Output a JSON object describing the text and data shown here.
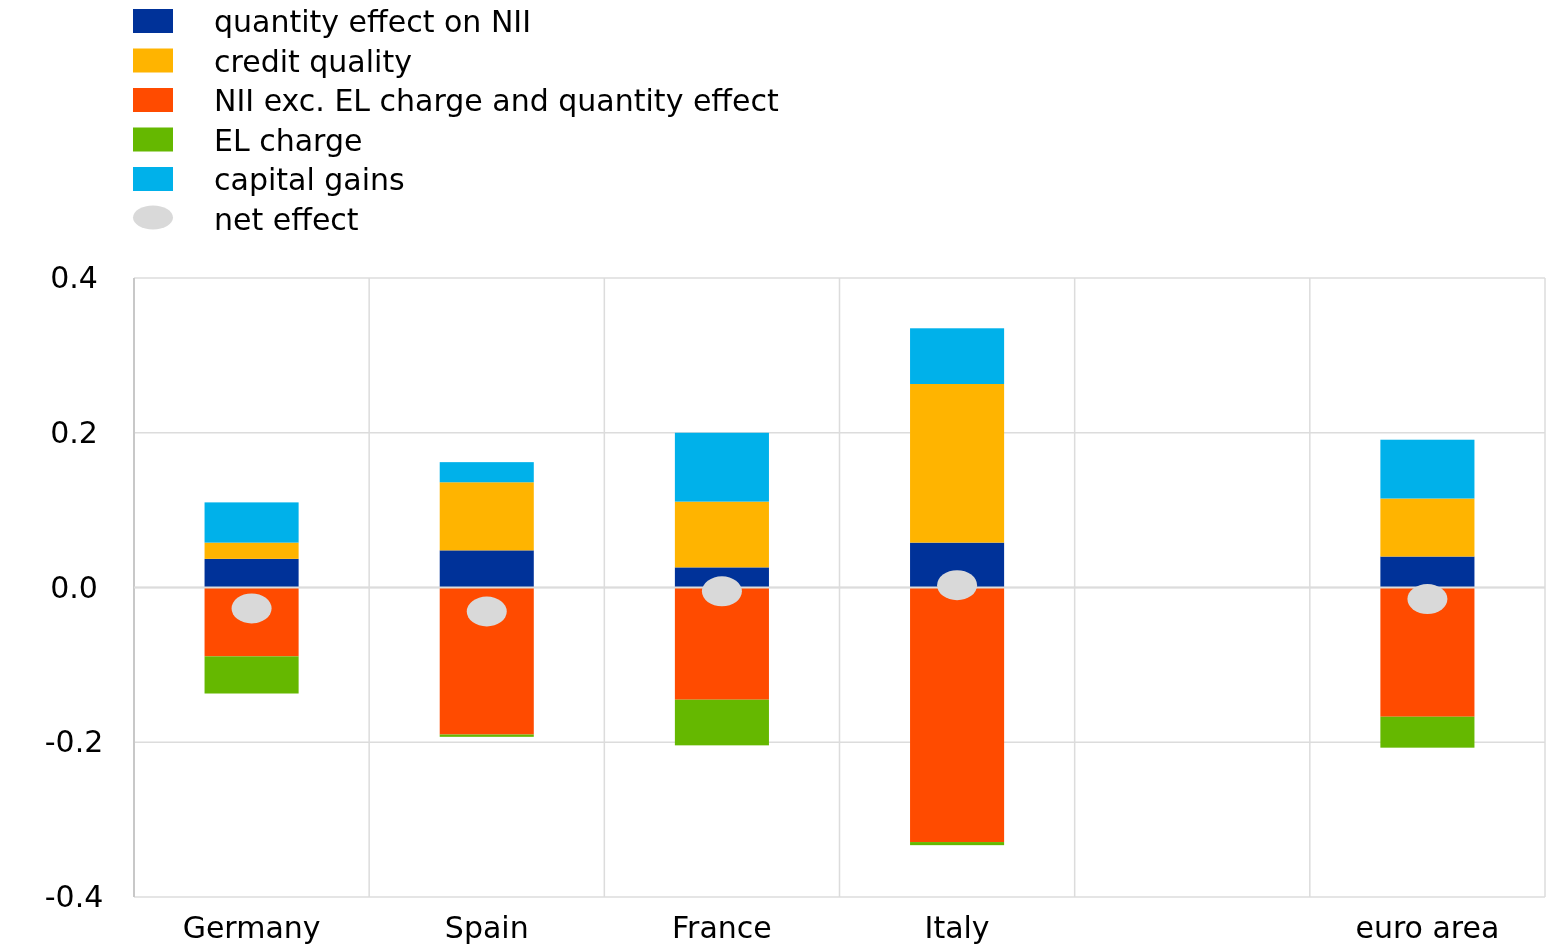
{
  "chart_data": {
    "type": "bar",
    "stacked": true,
    "categories": [
      "Germany",
      "Spain",
      "France",
      "Italy",
      null,
      "euro area"
    ],
    "series": [
      {
        "name": "quantity effect on NII",
        "color": "#003299",
        "values": [
          0.037,
          0.048,
          0.026,
          0.058,
          null,
          0.04
        ]
      },
      {
        "name": "credit quality",
        "color": "#ffb400",
        "values": [
          0.021,
          0.088,
          0.085,
          0.205,
          null,
          0.075
        ]
      },
      {
        "name": "NII exc. EL charge and quantity effect",
        "color": "#ff4b00",
        "values": [
          -0.089,
          -0.19,
          -0.145,
          -0.329,
          null,
          -0.167
        ]
      },
      {
        "name": "EL charge",
        "color": "#65b800",
        "values": [
          -0.048,
          -0.003,
          -0.059,
          -0.004,
          null,
          -0.04
        ]
      },
      {
        "name": "capital gains",
        "color": "#00b1ea",
        "values": [
          0.052,
          0.026,
          0.089,
          0.072,
          null,
          0.076
        ]
      },
      {
        "name": "net effect",
        "type": "scatter",
        "color": "#d9d9d9",
        "values": [
          -0.027,
          -0.031,
          -0.005,
          0.003,
          null,
          -0.015
        ]
      }
    ],
    "ylim": [
      -0.4,
      0.4
    ],
    "yticks": [
      {
        "value": -0.4,
        "label": "-0.4"
      },
      {
        "value": -0.2,
        "label": "-0.2"
      },
      {
        "value": 0,
        "label": "0.0"
      },
      {
        "value": 0.2,
        "label": "0.2"
      },
      {
        "value": 0.4,
        "label": "0.4"
      }
    ],
    "grid": true,
    "legend": "top left",
    "marker": "circle"
  }
}
